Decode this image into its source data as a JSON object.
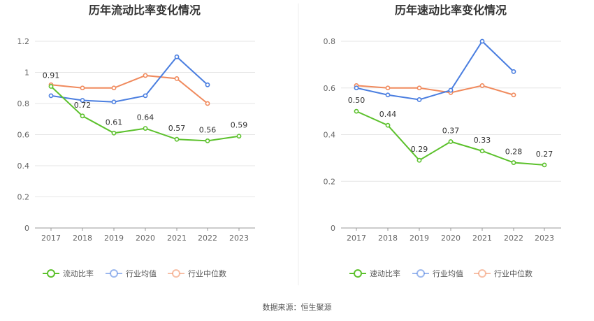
{
  "source_text": "数据来源：恒生聚源",
  "colors": {
    "green": "#5cc12c",
    "blue": "#4a7ee0",
    "orange": "#f08a5d"
  },
  "chart_data": [
    {
      "type": "line",
      "title": "历年流动比率变化情况",
      "categories": [
        "2017",
        "2018",
        "2019",
        "2020",
        "2021",
        "2022",
        "2023"
      ],
      "ylim": [
        0,
        1.2
      ],
      "yticks": [
        "0",
        "0.2",
        "0.4",
        "0.6",
        "0.8",
        "1",
        "1.2"
      ],
      "legend_position": "bottom",
      "grid": true,
      "series": [
        {
          "name": "流动比率",
          "color": "#5cc12c",
          "values": [
            0.91,
            0.72,
            0.61,
            0.64,
            0.57,
            0.56,
            0.59
          ],
          "labels": [
            "0.91",
            "0.72",
            "0.61",
            "0.64",
            "0.57",
            "0.56",
            "0.59"
          ]
        },
        {
          "name": "行业均值",
          "color": "#4a7ee0",
          "values": [
            0.85,
            0.82,
            0.81,
            0.85,
            1.1,
            0.92,
            null
          ]
        },
        {
          "name": "行业中位数",
          "color": "#f08a5d",
          "values": [
            0.92,
            0.9,
            0.9,
            0.98,
            0.96,
            0.8,
            null
          ]
        }
      ]
    },
    {
      "type": "line",
      "title": "历年速动比率变化情况",
      "categories": [
        "2017",
        "2018",
        "2019",
        "2020",
        "2021",
        "2022",
        "2023"
      ],
      "ylim": [
        0,
        0.8
      ],
      "yticks": [
        "0",
        "0.2",
        "0.4",
        "0.6",
        "0.8"
      ],
      "legend_position": "bottom",
      "grid": true,
      "series": [
        {
          "name": "速动比率",
          "color": "#5cc12c",
          "values": [
            0.5,
            0.44,
            0.29,
            0.37,
            0.33,
            0.28,
            0.27
          ],
          "labels": [
            "0.50",
            "0.44",
            "0.29",
            "0.37",
            "0.33",
            "0.28",
            "0.27"
          ]
        },
        {
          "name": "行业均值",
          "color": "#4a7ee0",
          "values": [
            0.6,
            0.57,
            0.55,
            0.59,
            0.8,
            0.67,
            null
          ]
        },
        {
          "name": "行业中位数",
          "color": "#f08a5d",
          "values": [
            0.61,
            0.6,
            0.6,
            0.58,
            0.61,
            0.57,
            null
          ]
        }
      ]
    }
  ]
}
